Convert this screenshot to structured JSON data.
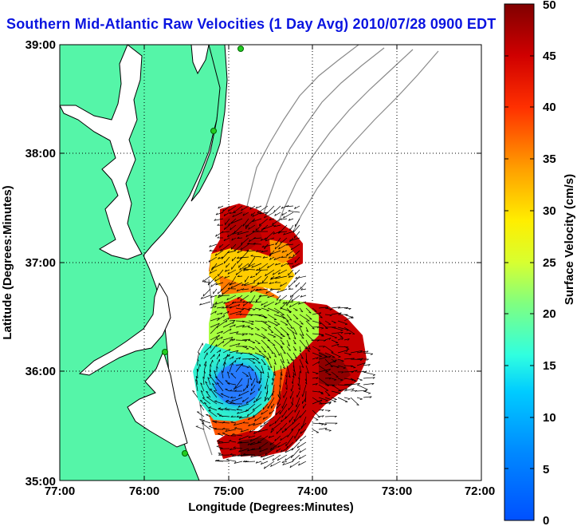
{
  "title": "Southern Mid-Atlantic Raw Velocities (1 Day Avg) 2010/07/28 0900 EDT",
  "chart_data": {
    "type": "map",
    "xlabel": "Longitude (Degrees:Minutes)",
    "ylabel": "Latitude (Degrees:Minutes)",
    "xlim": [
      -77,
      -72
    ],
    "ylim": [
      35,
      39
    ],
    "x_ticks": [
      "77:00",
      "76:00",
      "75:00",
      "74:00",
      "73:00",
      "72:00"
    ],
    "y_ticks": [
      "35:00",
      "36:00",
      "37:00",
      "38:00",
      "39:00"
    ],
    "grid": true,
    "colorbar": {
      "label": "Surface Velocity (cm/s)",
      "min": 0,
      "max": 50,
      "ticks": [
        "0",
        "5",
        "10",
        "15",
        "20",
        "25",
        "30",
        "35",
        "40",
        "45",
        "50"
      ]
    },
    "colors": {
      "land": "#55f5a8",
      "coast": "#000000",
      "bathymetry": "#8a8a8a",
      "station": "#22cc22"
    }
  }
}
